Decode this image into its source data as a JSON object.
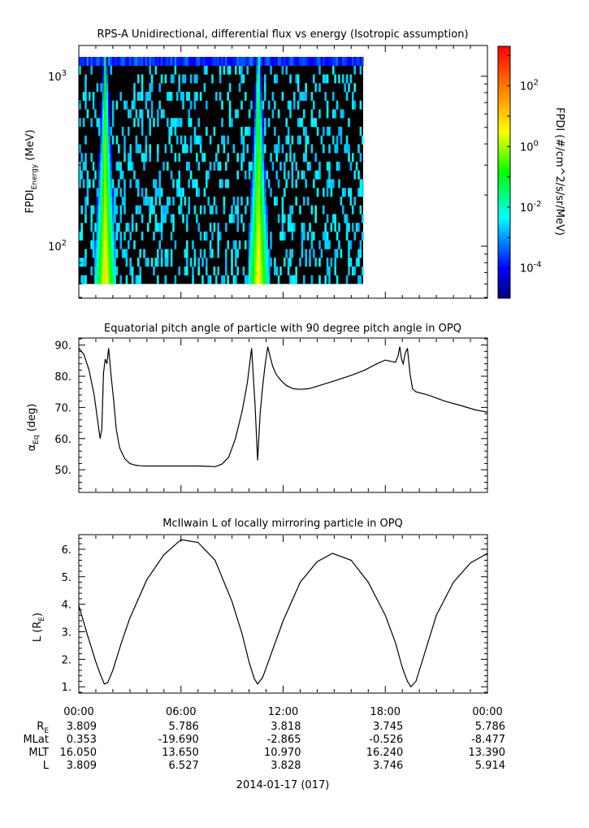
{
  "panels": {
    "spectrogram": {
      "title": "RPS-A Unidirectional, differential flux vs energy (Isotropic assumption)",
      "ylabel_main": "FPDI",
      "ylabel_sub": "Energy",
      "ylabel_unit": "(MeV)",
      "colorbar_label": "FPDI (#/cm^2/s/sr/MeV)"
    },
    "pitch": {
      "title": "Equatorial pitch angle of particle with 90 degree pitch angle in OPQ",
      "ylabel_main": "α",
      "ylabel_sub": "Eq",
      "ylabel_unit": "(deg)"
    },
    "lshell": {
      "title": "McIlwain L of locally mirroring particle in OPQ",
      "ylabel_main": "L (R",
      "ylabel_sub": "E",
      "ylabel_close": ")"
    }
  },
  "ephemeris": {
    "time_labels": [
      "00:00",
      "06:00",
      "12:00",
      "18:00",
      "00:00"
    ],
    "rows": [
      {
        "label": "R",
        "label_sub": "E",
        "values": [
          "3.809",
          "5.786",
          "3.818",
          "3.745",
          "5.786"
        ]
      },
      {
        "label": "MLat",
        "label_sub": "",
        "values": [
          "0.353",
          "-19.690",
          "-2.865",
          "-0.526",
          "-8.477"
        ]
      },
      {
        "label": "MLT",
        "label_sub": "",
        "values": [
          "16.050",
          "13.650",
          "10.970",
          "16.240",
          "13.390"
        ]
      },
      {
        "label": "L",
        "label_sub": "",
        "values": [
          "3.809",
          "6.527",
          "3.828",
          "3.746",
          "5.914"
        ]
      }
    ],
    "date_label": "2014-01-17 (017)"
  },
  "chart_data": [
    {
      "type": "heatmap",
      "title": "RPS-A Unidirectional, differential flux vs energy (Isotropic assumption)",
      "xlabel": "",
      "ylabel": "FPDI Energy (MeV)",
      "yscale": "log",
      "ylim": [
        50,
        1500
      ],
      "y_tick_labels": [
        "10^2",
        "10^3"
      ],
      "xlim_hours": [
        0,
        24
      ],
      "data_end_hour": 16.7,
      "energy_range_mev": [
        60,
        1300
      ],
      "bright_bands_hour": [
        1.5,
        10.5
      ],
      "colorbar": {
        "label": "FPDI (#/cm^2/s/sr/MeV)",
        "scale": "log",
        "range": [
          1e-05,
          2000
        ],
        "tick_labels": [
          "10^2",
          "10^0",
          "10^-2",
          "10^-4"
        ],
        "colormap": [
          "#00008b",
          "#0000ff",
          "#00ffff",
          "#00ff00",
          "#ffff00",
          "#ff7f00",
          "#ff0000"
        ]
      }
    },
    {
      "type": "line",
      "title": "Equatorial pitch angle of particle with 90 degree pitch angle in OPQ",
      "xlabel": "",
      "ylabel": "αEq (deg)",
      "ylim": [
        43,
        92
      ],
      "y_ticks": [
        50,
        60,
        70,
        80,
        90
      ],
      "series": [
        {
          "x": [
            0,
            0.3,
            0.6,
            0.9,
            1.1,
            1.25,
            1.35,
            1.45,
            1.55,
            1.65,
            1.75,
            1.9,
            2.05,
            2.2,
            2.4,
            2.7,
            3.0,
            3.3,
            3.6,
            4.0,
            4.5,
            5.0,
            6.0,
            7.0,
            7.6,
            8.0,
            8.4,
            8.8,
            9.2,
            9.6,
            9.9,
            10.15,
            10.35,
            10.5,
            10.65,
            10.8,
            10.95,
            11.1,
            11.25,
            11.4,
            11.6,
            11.9,
            12.2,
            12.6,
            13.0,
            13.5,
            14.0,
            15.0,
            16.0,
            16.8,
            17.5,
            18.0,
            18.3,
            18.6,
            18.75,
            18.85,
            18.95,
            19.05,
            19.15,
            19.3,
            19.45,
            19.6,
            19.8,
            20.5,
            21.5,
            22.5,
            23.3,
            24.0
          ],
          "y": [
            89,
            87,
            82,
            74,
            66,
            60,
            63,
            81,
            85.5,
            84,
            89,
            80,
            72,
            63,
            57,
            53.5,
            52,
            51.5,
            51.3,
            51.2,
            51.2,
            51.2,
            51.2,
            51.2,
            51.1,
            51.0,
            51.8,
            54,
            60,
            69,
            78,
            89,
            71,
            53,
            68,
            77,
            84,
            89.5,
            86,
            83,
            80.5,
            78.5,
            77,
            76,
            75.8,
            76,
            76.8,
            78.5,
            80.3,
            82,
            84,
            85.2,
            84.8,
            84.5,
            86.5,
            89.5,
            85.5,
            84,
            87,
            89,
            81,
            76,
            75,
            74,
            72,
            70.5,
            69.2,
            68.5
          ]
        }
      ]
    },
    {
      "type": "line",
      "title": "McIlwain L of locally mirroring particle in OPQ",
      "xlabel": "",
      "ylabel": "L (RE)",
      "ylim": [
        0.8,
        6.5
      ],
      "y_ticks": [
        1,
        2,
        3,
        4,
        5,
        6
      ],
      "series": [
        {
          "x": [
            0,
            0.5,
            1.0,
            1.3,
            1.5,
            1.7,
            2.0,
            2.5,
            3.0,
            4.0,
            5.0,
            6.0,
            7.0,
            8.0,
            9.0,
            9.6,
            10.0,
            10.3,
            10.5,
            10.8,
            11.3,
            12.0,
            13.0,
            14.0,
            14.9,
            16.0,
            17.0,
            18.0,
            18.6,
            19.0,
            19.3,
            19.5,
            19.8,
            20.2,
            21.0,
            22.0,
            23.0,
            24.0
          ],
          "y": [
            3.95,
            2.9,
            1.9,
            1.4,
            1.1,
            1.15,
            1.6,
            2.6,
            3.5,
            4.9,
            5.8,
            6.35,
            6.25,
            5.6,
            4.1,
            2.9,
            1.9,
            1.3,
            1.1,
            1.35,
            2.2,
            3.4,
            4.8,
            5.55,
            5.85,
            5.6,
            4.8,
            3.6,
            2.6,
            1.7,
            1.2,
            1.0,
            1.2,
            2.0,
            3.6,
            4.8,
            5.5,
            5.85
          ]
        }
      ]
    }
  ]
}
